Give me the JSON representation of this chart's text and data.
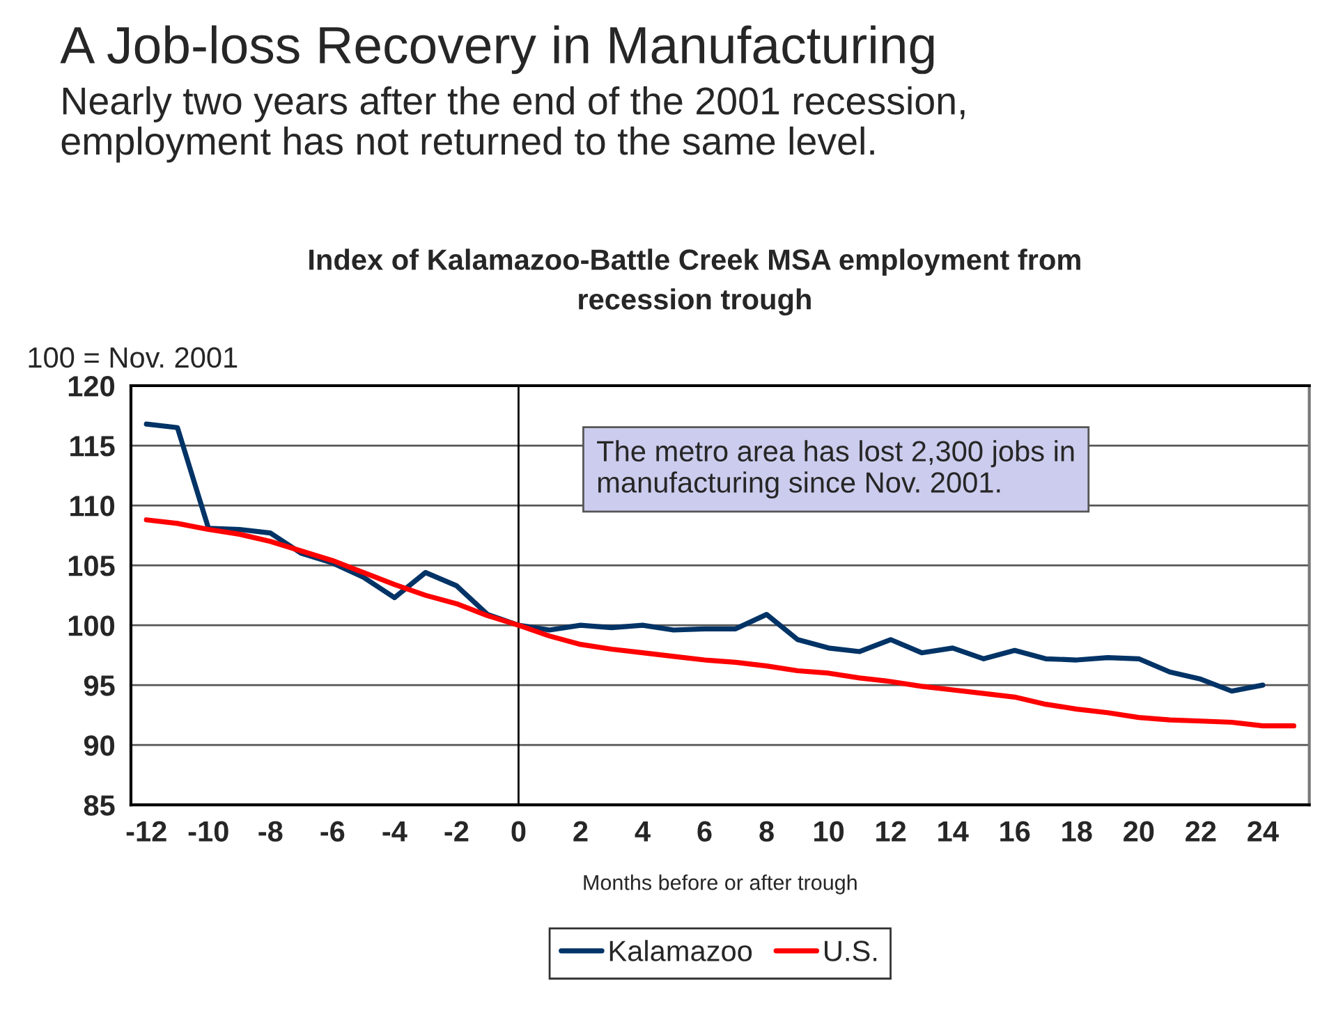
{
  "chart_data": {
    "type": "line",
    "title": "A Job-loss Recovery in Manufacturing",
    "subtitle": "Nearly two years after the end of the 2001 recession,\nemployment has not returned to the same level.",
    "annotations": [
      "Index of Kalamazoo-Battle Creek MSA employment from\nrecession trough",
      "The metro area has lost 2,300 jobs in\nmanufacturing since Nov. 2001."
    ],
    "ylabel": "100 = Nov. 2001",
    "xlabel": "Months before or after trough",
    "x": [
      -12,
      -11,
      -10,
      -9,
      -8,
      -7,
      -6,
      -5,
      -4,
      -3,
      -2,
      -1,
      0,
      1,
      2,
      3,
      4,
      5,
      6,
      7,
      8,
      9,
      10,
      11,
      12,
      13,
      14,
      15,
      16,
      17,
      18,
      19,
      20,
      21,
      22,
      23,
      24,
      25
    ],
    "series": [
      {
        "name": "Kalamazoo",
        "color": "#003366",
        "values": [
          116.8,
          116.5,
          108.1,
          108.0,
          107.7,
          106.0,
          105.2,
          104.0,
          102.3,
          104.4,
          103.3,
          100.9,
          100,
          99.6,
          100.0,
          99.8,
          100.0,
          99.6,
          99.7,
          99.7,
          100.9,
          98.8,
          98.1,
          97.8,
          98.8,
          97.7,
          98.1,
          97.2,
          97.9,
          97.2,
          97.1,
          97.3,
          97.2,
          96.1,
          95.5,
          94.5,
          95.0,
          null
        ]
      },
      {
        "name": "U.S.",
        "color": "#ff0000",
        "values": [
          108.8,
          108.5,
          108.0,
          107.6,
          107.0,
          106.2,
          105.4,
          104.4,
          103.4,
          102.5,
          101.8,
          100.8,
          100,
          99.1,
          98.4,
          98.0,
          97.7,
          97.4,
          97.1,
          96.9,
          96.6,
          96.2,
          96.0,
          95.6,
          95.3,
          94.9,
          94.6,
          94.3,
          94.0,
          93.4,
          93.0,
          92.7,
          92.3,
          92.1,
          92.0,
          91.9,
          91.6,
          91.6
        ]
      }
    ],
    "xlim": [
      -12.5,
      25.5
    ],
    "xticks": [
      -12,
      -10,
      -8,
      -6,
      -4,
      -2,
      0,
      2,
      4,
      6,
      8,
      10,
      12,
      14,
      16,
      18,
      20,
      22,
      24
    ],
    "ylim": [
      85,
      120
    ],
    "yticks": [
      85,
      90,
      95,
      100,
      105,
      110,
      115,
      120
    ],
    "ref_lines": [
      {
        "axis": "x",
        "value": 0,
        "color": "#000000"
      }
    ],
    "grid": "y",
    "legend": "bottom",
    "marker": "none",
    "line_style": "solid"
  }
}
